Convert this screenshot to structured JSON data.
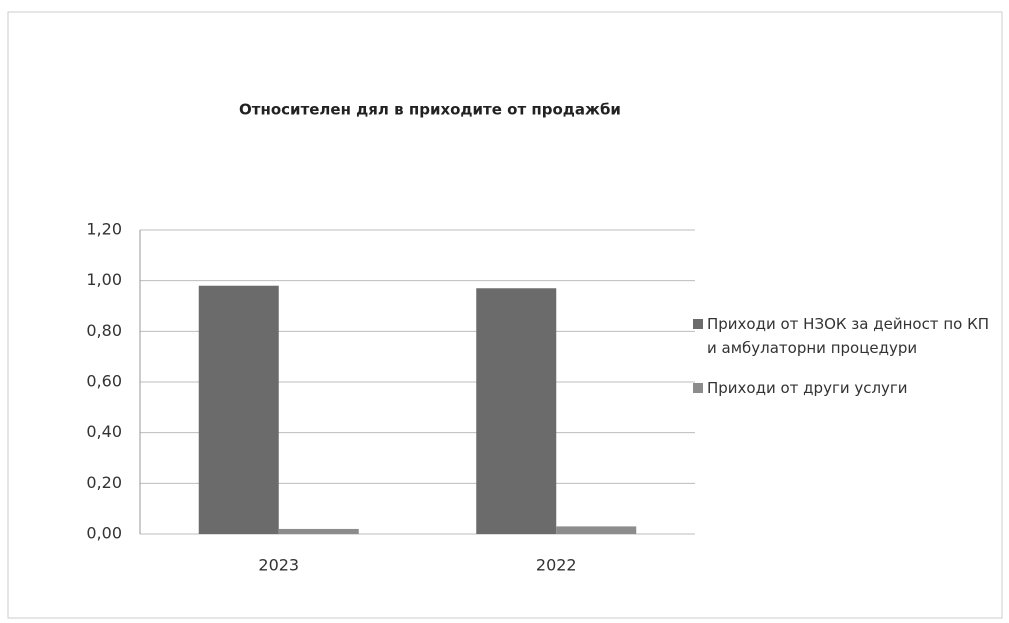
{
  "chart_data": {
    "type": "bar",
    "title": "Относителен дял в приходите от продажби",
    "categories": [
      "2023",
      "2022"
    ],
    "series": [
      {
        "name": "Приходи от НЗОК за дейност по КП и амбулаторни процедури",
        "color": "#6b6b6b",
        "values": [
          0.98,
          0.97
        ]
      },
      {
        "name": "Приходи от други услуги",
        "color": "#8c8c8c",
        "values": [
          0.02,
          0.03
        ]
      }
    ],
    "ylim": [
      0,
      1.2
    ],
    "yticks": [
      {
        "value": 0,
        "label": "0,00"
      },
      {
        "value": 0.2,
        "label": "0,20"
      },
      {
        "value": 0.4,
        "label": "0,40"
      },
      {
        "value": 0.6,
        "label": "0,60"
      },
      {
        "value": 0.8,
        "label": "0,80"
      },
      {
        "value": 1.0,
        "label": "1,00"
      },
      {
        "value": 1.2,
        "label": "1,20"
      }
    ],
    "grid": true,
    "legend": "right"
  }
}
